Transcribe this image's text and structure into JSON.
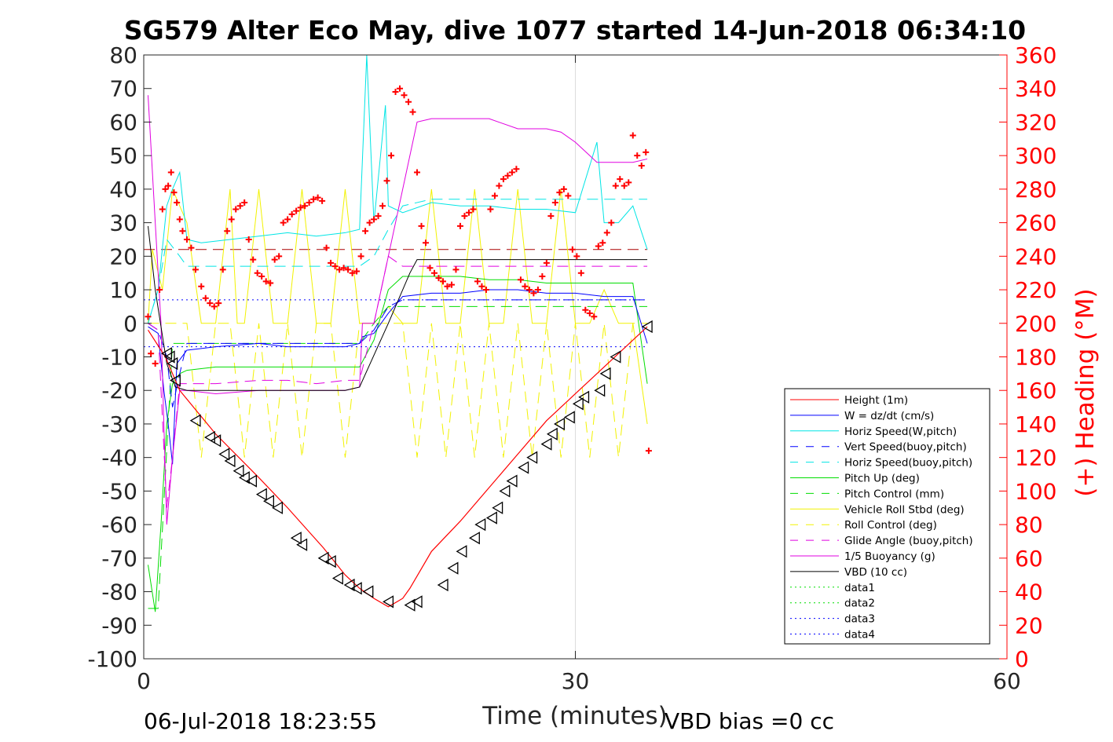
{
  "chart_data": {
    "type": "line",
    "title": "SG579 Alter Eco May, dive 1077 started 14-Jun-2018 06:34:10",
    "xlabel": "Time (minutes)",
    "ylabel_right": "(+) Heading (°M)",
    "footer_left": "06-Jul-2018 18:23:55",
    "footer_right": "VBD bias =0 cc",
    "xlim": [
      0,
      60
    ],
    "ylim": [
      -100,
      80
    ],
    "ylim_right": [
      0,
      360
    ],
    "x_ticks": [
      0,
      30,
      60
    ],
    "y_ticks": [
      80,
      70,
      60,
      50,
      40,
      30,
      20,
      10,
      0,
      -10,
      -20,
      -30,
      -40,
      -50,
      -60,
      -70,
      -80,
      -90,
      -100
    ],
    "y2_ticks": [
      360,
      340,
      320,
      300,
      280,
      260,
      240,
      220,
      200,
      180,
      160,
      140,
      120,
      100,
      80,
      60,
      40,
      20,
      0
    ],
    "grid": "x only",
    "legend_position": "lower-right",
    "colors": {
      "red": "#ff0000",
      "blue": "#0000ff",
      "cyan": "#00e5e5",
      "green": "#00dd00",
      "yellow": "#f2f200",
      "magenta": "#e000e0",
      "black": "#000000",
      "darkred": "#aa0000",
      "heading": "#ff0000"
    },
    "series": [
      {
        "name": "Height (1m)",
        "color": "#ff0000",
        "style": "solid",
        "x": [
          0.3,
          1.5,
          2.5,
          5,
          8,
          10,
          12.5,
          14,
          15,
          16,
          17,
          18,
          18.5,
          20,
          22,
          24,
          26,
          28,
          30,
          32,
          35
        ],
        "y": [
          -2,
          -10,
          -20,
          -33,
          -46,
          -55,
          -67,
          -75,
          -79,
          -82,
          -84.5,
          -82,
          -79,
          -68,
          -59,
          -49,
          -39,
          -29,
          -21,
          -13,
          -1
        ]
      },
      {
        "name": "W = dz/dt (cm/s)",
        "color": "#0000ff",
        "style": "solid",
        "x": [
          0.3,
          1,
          1.4,
          1.7,
          2,
          2.3,
          3,
          5,
          8,
          10,
          12,
          14,
          15,
          15.2,
          16,
          17,
          18,
          20,
          22,
          24,
          26,
          28,
          30,
          32,
          34,
          35
        ],
        "y": [
          -1,
          -3,
          -20,
          -30,
          -42,
          -12,
          -8,
          -7,
          -6,
          -7,
          -7,
          -7,
          -6,
          -4,
          -3,
          3,
          8,
          9,
          9,
          10,
          10,
          9,
          9,
          8,
          8,
          -6
        ]
      },
      {
        "name": "Horiz Speed(W,pitch)",
        "color": "#00e5e5",
        "style": "solid",
        "x": [
          0.3,
          1,
          1.6,
          2,
          2.5,
          3,
          4,
          6,
          8,
          10,
          12,
          14,
          15,
          15.5,
          16,
          16.8,
          17,
          18,
          20,
          22,
          24,
          26,
          28,
          30,
          31.5,
          32,
          33,
          34,
          35
        ],
        "y": [
          0,
          10,
          35,
          40,
          45,
          25,
          24,
          25,
          26,
          27,
          26,
          27,
          28,
          80,
          30,
          65,
          35,
          33,
          36,
          35,
          35,
          34,
          34,
          33,
          54,
          30,
          30,
          35,
          22
        ]
      },
      {
        "name": "Vert Speed(buoy,pitch)",
        "color": "#0000ff",
        "style": "dashed",
        "x": [
          0.3,
          1,
          1.6,
          2,
          2.5,
          3,
          5,
          8,
          10,
          12,
          14,
          15,
          16,
          17,
          18,
          20,
          22,
          24,
          26,
          28,
          30,
          32,
          34,
          35
        ],
        "y": [
          0,
          -2,
          -10,
          -25,
          -15,
          -6,
          -6,
          -6,
          -6,
          -6,
          -6,
          -6,
          -2,
          5,
          7,
          7,
          7,
          7,
          7,
          7,
          7,
          7,
          7,
          7
        ]
      },
      {
        "name": "Horiz Speed(buoy,pitch)",
        "color": "#00e5e5",
        "style": "dashed",
        "x": [
          0.3,
          1,
          1.6,
          2.5,
          3,
          5,
          8,
          10,
          12,
          14,
          15,
          16,
          17,
          18,
          20,
          22,
          24,
          26,
          28,
          30,
          32,
          34,
          35
        ],
        "y": [
          0,
          10,
          25,
          20,
          17,
          17,
          17,
          17,
          17,
          17,
          17,
          20,
          28,
          35,
          37,
          37,
          37,
          37,
          37,
          37,
          37,
          37,
          37
        ]
      },
      {
        "name": "Pitch Up (deg)",
        "color": "#00dd00",
        "style": "solid",
        "x": [
          0.3,
          0.8,
          1.2,
          1.6,
          2,
          2.5,
          3,
          5,
          8,
          10,
          12,
          14,
          15,
          16,
          17,
          18,
          20,
          22,
          24,
          26,
          28,
          30,
          32,
          34,
          35
        ],
        "y": [
          -72,
          -86,
          -60,
          -30,
          -18,
          -15,
          -14,
          -13,
          -13,
          -13,
          -13,
          -13,
          -13,
          -5,
          10,
          14,
          14,
          14,
          13,
          13,
          12,
          12,
          12,
          12,
          -18
        ]
      },
      {
        "name": "Pitch Control (mm)",
        "color": "#00dd00",
        "style": "dashed",
        "x": [
          0.3,
          1,
          2,
          3,
          5,
          10,
          15,
          16,
          17,
          18,
          20,
          25,
          30,
          35
        ],
        "y": [
          -85,
          -85,
          -6,
          -6,
          -6,
          -6,
          -6,
          0,
          5,
          5,
          5,
          5,
          5,
          5
        ]
      },
      {
        "name": "Vehicle Roll Stbd (deg)",
        "color": "#f2f200",
        "style": "solid",
        "x": [
          0.3,
          0.6,
          1.3,
          2,
          3,
          4,
          5,
          6,
          6.5,
          7,
          8,
          9,
          10,
          11,
          12,
          13,
          14,
          15,
          16,
          17,
          18,
          19,
          20,
          21,
          22,
          23,
          24,
          25,
          26,
          27,
          28,
          29,
          30,
          31,
          32,
          33,
          34,
          35
        ],
        "y": [
          0,
          22,
          10,
          40,
          30,
          0,
          0,
          40,
          0,
          0,
          40,
          0,
          0,
          40,
          0,
          0,
          40,
          0,
          0,
          5,
          0,
          0,
          40,
          0,
          0,
          40,
          0,
          0,
          40,
          0,
          0,
          40,
          0,
          0,
          10,
          0,
          0,
          -30
        ]
      },
      {
        "name": "Roll Control (deg)",
        "color": "#f2f200",
        "style": "dashed",
        "x": [
          0.3,
          2,
          3,
          4,
          5,
          6,
          7,
          8,
          9,
          10,
          11,
          12,
          13,
          14,
          15,
          16,
          17,
          18,
          19,
          20,
          21,
          22,
          23,
          24,
          25,
          26,
          27,
          28,
          29,
          30,
          31,
          32,
          33,
          34,
          35
        ],
        "y": [
          0,
          0,
          0,
          -40,
          0,
          0,
          -40,
          0,
          -40,
          0,
          -40,
          0,
          0,
          -40,
          0,
          0,
          0,
          0,
          -40,
          0,
          -40,
          0,
          -40,
          0,
          -40,
          0,
          -40,
          0,
          -40,
          0,
          -40,
          0,
          -40,
          0,
          0
        ]
      },
      {
        "name": "Glide Angle (buoy,pitch)",
        "color": "#e000e0",
        "style": "dashed",
        "x": [
          0.3,
          1,
          1.6,
          2,
          2.5,
          3,
          5,
          8,
          10,
          12,
          14,
          15,
          16,
          17,
          18,
          20,
          22,
          24,
          26,
          28,
          30,
          32,
          34,
          35
        ],
        "y": [
          0,
          -2,
          -55,
          -40,
          -18,
          -18,
          -18,
          -17,
          -17,
          -18,
          -17,
          -17,
          0,
          20,
          17,
          17,
          17,
          17,
          17,
          17,
          17,
          17,
          17,
          17
        ]
      },
      {
        "name": "1/5 Buoyancy (g)",
        "color": "#e000e0",
        "style": "solid",
        "x": [
          0.3,
          0.8,
          1.2,
          1.6,
          2,
          2.5,
          3,
          5,
          8,
          10,
          12,
          14,
          15,
          15.2,
          16,
          17,
          18,
          19,
          20,
          22,
          24,
          26,
          27,
          28,
          29,
          30,
          31,
          31.5,
          32,
          33,
          34,
          35
        ],
        "y": [
          68,
          30,
          0,
          -60,
          -40,
          -20,
          -20,
          -21,
          -20,
          -20,
          -20,
          -20,
          -19,
          0,
          0,
          20,
          40,
          60,
          61,
          61,
          61,
          58,
          58,
          58,
          57,
          54,
          50,
          48,
          48,
          48,
          48,
          49
        ]
      },
      {
        "name": "VBD (10 cc)",
        "color": "#000000",
        "style": "solid",
        "x": [
          0.3,
          0.8,
          1.6,
          2.2,
          3,
          5,
          10,
          14,
          15,
          17,
          18.5,
          19,
          20,
          25,
          30,
          35
        ],
        "y": [
          29,
          10,
          -12,
          -19,
          -20,
          -20,
          -20,
          -20,
          -19,
          0,
          15,
          19,
          19,
          19,
          19,
          19
        ]
      },
      {
        "name": "data1",
        "color": "#00dd00",
        "style": "dotted",
        "x": [],
        "y": []
      },
      {
        "name": "data2",
        "color": "#00dd00",
        "style": "dotted",
        "x": [],
        "y": []
      },
      {
        "name": "data3",
        "color": "#0000ff",
        "style": "dotted",
        "x": [
          0,
          35
        ],
        "y": [
          7,
          7
        ]
      },
      {
        "name": "data4",
        "color": "#0000ff",
        "style": "dotted",
        "x": [
          0,
          35
        ],
        "y": [
          -7,
          -7
        ]
      }
    ],
    "reference_line": {
      "color": "#aa0000",
      "style": "dashed",
      "x": [
        0,
        35
      ],
      "y": [
        22,
        22
      ]
    },
    "heading_points": {
      "marker": "+",
      "color": "#ff0000",
      "x": [
        0.3,
        0.5,
        0.8,
        1.1,
        1.3,
        1.5,
        1.7,
        1.9,
        2.1,
        2.3,
        2.5,
        2.7,
        3.0,
        3.3,
        3.6,
        4.0,
        4.3,
        4.6,
        4.9,
        5.2,
        5.5,
        5.8,
        6.1,
        6.4,
        6.7,
        7.0,
        7.3,
        7.6,
        7.9,
        8.2,
        8.5,
        8.8,
        9.1,
        9.4,
        9.7,
        10.0,
        10.3,
        10.6,
        10.9,
        11.2,
        11.5,
        11.8,
        12.1,
        12.4,
        12.7,
        13.0,
        13.3,
        13.6,
        13.9,
        14.2,
        14.5,
        14.8,
        15.1,
        15.4,
        15.7,
        16.0,
        16.3,
        16.6,
        16.9,
        17.2,
        17.5,
        17.8,
        18.1,
        18.4,
        18.7,
        19.0,
        19.3,
        19.6,
        19.9,
        20.2,
        20.5,
        20.8,
        21.1,
        21.4,
        21.7,
        22.0,
        22.3,
        22.6,
        22.9,
        23.2,
        23.5,
        23.8,
        24.1,
        24.4,
        24.7,
        25.0,
        25.3,
        25.6,
        25.9,
        26.2,
        26.5,
        26.8,
        27.1,
        27.4,
        27.7,
        28.0,
        28.3,
        28.6,
        28.9,
        29.2,
        29.5,
        29.8,
        30.1,
        30.4,
        30.7,
        31.0,
        31.3,
        31.6,
        31.9,
        32.2,
        32.5,
        32.8,
        33.1,
        33.4,
        33.7,
        34.0,
        34.3,
        34.6,
        34.9,
        35.1
      ],
      "y": [
        204,
        182,
        176,
        220,
        268,
        280,
        282,
        290,
        278,
        272,
        262,
        255,
        250,
        245,
        232,
        222,
        215,
        212,
        210,
        212,
        232,
        255,
        262,
        268,
        270,
        272,
        250,
        238,
        230,
        228,
        225,
        224,
        238,
        240,
        260,
        262,
        265,
        267,
        269,
        270,
        272,
        274,
        275,
        273,
        245,
        236,
        234,
        232,
        233,
        232,
        230,
        231,
        240,
        255,
        260,
        262,
        264,
        270,
        285,
        300,
        338,
        340,
        336,
        332,
        326,
        290,
        258,
        248,
        233,
        230,
        227,
        225,
        222,
        223,
        232,
        258,
        264,
        266,
        268,
        225,
        222,
        220,
        268,
        276,
        282,
        286,
        288,
        290,
        292,
        226,
        222,
        220,
        218,
        220,
        228,
        236,
        264,
        272,
        278,
        280,
        276,
        244,
        240,
        230,
        208,
        206,
        204,
        246,
        248,
        254,
        260,
        282,
        286,
        282,
        284,
        312,
        300,
        294,
        302,
        124
      ]
    },
    "depth_markers": {
      "marker": "triangle-left",
      "color": "#000000",
      "x": [
        1.6,
        1.8,
        2.0,
        2.2,
        3.6,
        4.6,
        5.0,
        5.6,
        6.0,
        6.6,
        7.0,
        7.5,
        8.2,
        8.7,
        9.3,
        10.6,
        11.0,
        12.5,
        13.0,
        13.5,
        14.3,
        14.8,
        15.6,
        17.0,
        18.5,
        19.0,
        20.8,
        21.5,
        22.1,
        23.0,
        23.4,
        24.2,
        24.6,
        25.1,
        25.6,
        26.4,
        27.0,
        28.0,
        28.4,
        28.9,
        29.6,
        30.2,
        30.6,
        31.7,
        32.1,
        32.8,
        35.0
      ],
      "y": [
        -9,
        -10,
        -12,
        -17,
        -29,
        -34,
        -35,
        -39,
        -41,
        -44,
        -46,
        -47,
        -51,
        -53,
        -55,
        -64,
        -66,
        -70,
        -71,
        -76,
        -78,
        -79,
        -80,
        -83,
        -84,
        -83,
        -78,
        -73,
        -68,
        -64,
        -60,
        -58,
        -55,
        -50,
        -47,
        -43,
        -40,
        -36,
        -33,
        -30,
        -28,
        -24,
        -22,
        -20,
        -15,
        -10,
        -1
      ]
    }
  }
}
